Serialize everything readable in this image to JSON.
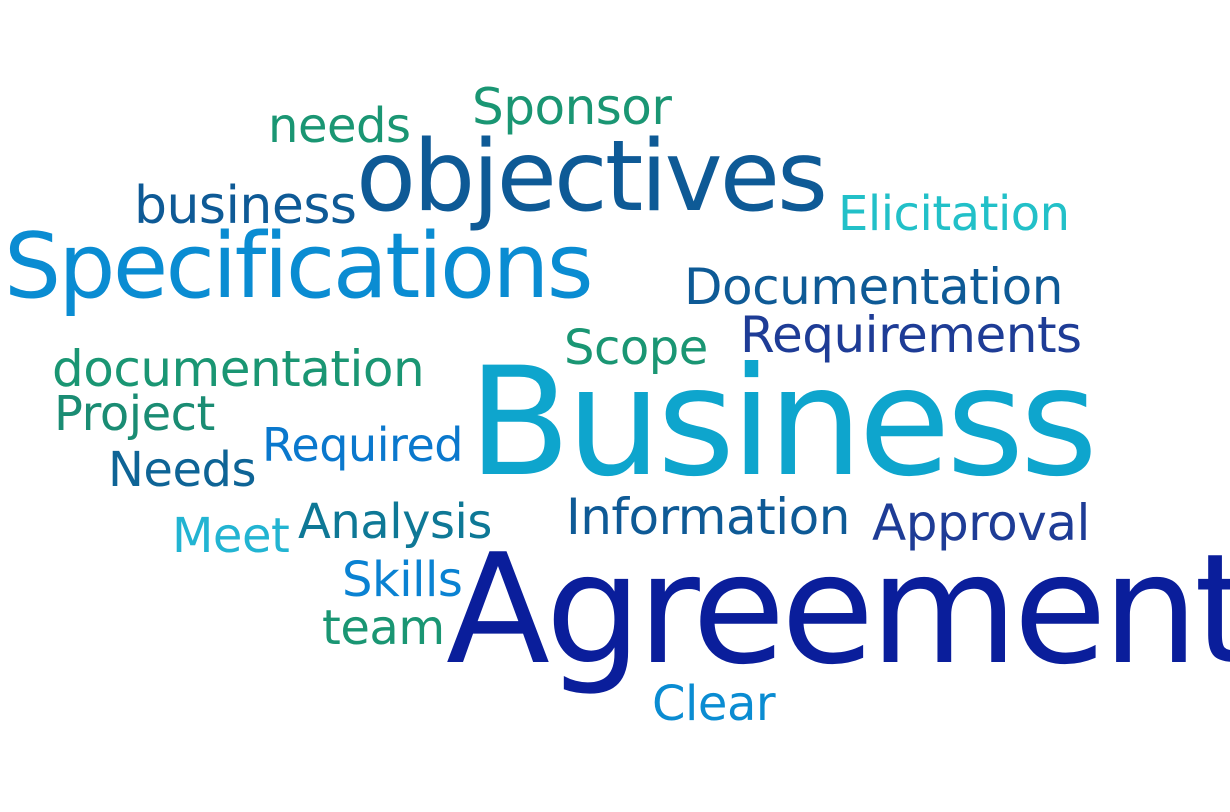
{
  "words": {
    "sponsor": {
      "text": "Sponsor",
      "color": "#1a9673"
    },
    "needs_lower": {
      "text": "needs",
      "color": "#1a9673"
    },
    "objectives": {
      "text": "objectives",
      "color": "#0e5a96"
    },
    "business_lower": {
      "text": "business",
      "color": "#0e5a96"
    },
    "elicitation": {
      "text": "Elicitation",
      "color": "#22c0c8"
    },
    "specifications": {
      "text": "Specifications",
      "color": "#0a8cd2"
    },
    "documentation": {
      "text": "Documentation",
      "color": "#0e5a96"
    },
    "requirements": {
      "text": "Requirements",
      "color": "#1e3c96"
    },
    "scope": {
      "text": "Scope",
      "color": "#1a9673"
    },
    "doc_lower": {
      "text": "documentation",
      "color": "#1a9673"
    },
    "business_big": {
      "text": "Business",
      "color": "#0ea5cd"
    },
    "project": {
      "text": "Project",
      "color": "#1a8c73"
    },
    "required": {
      "text": "Required",
      "color": "#0a78cd"
    },
    "needs_upper": {
      "text": "Needs",
      "color": "#0e6496"
    },
    "information": {
      "text": "Information",
      "color": "#0e5a96"
    },
    "approval": {
      "text": "Approval",
      "color": "#1e3c96"
    },
    "analysis": {
      "text": "Analysis",
      "color": "#0e7896"
    },
    "meet": {
      "text": "Meet",
      "color": "#22b4d2"
    },
    "agreement": {
      "text": "Agreement",
      "color": "#0a1e9b"
    },
    "skills": {
      "text": "Skills",
      "color": "#0a82d2"
    },
    "team": {
      "text": "team",
      "color": "#1a9673"
    },
    "clear": {
      "text": "Clear",
      "color": "#0a8cd2"
    }
  }
}
